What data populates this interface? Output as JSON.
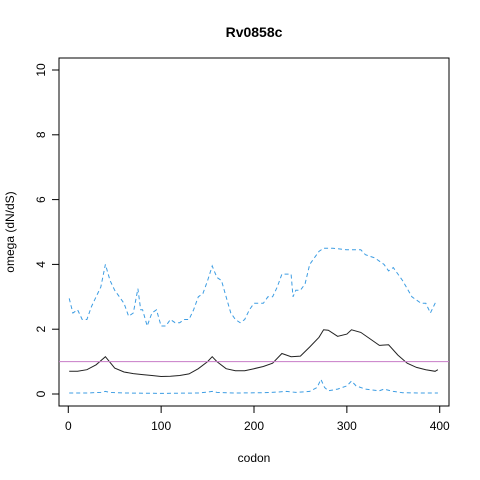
{
  "chart_data": {
    "type": "line",
    "title": "Rv0858c",
    "xlabel": "codon",
    "ylabel": "omega (dN/dS)",
    "xlim": [
      -10,
      410
    ],
    "ylim": [
      0,
      10
    ],
    "x_ticks": [
      0,
      100,
      200,
      300,
      400
    ],
    "y_ticks": [
      0,
      2,
      4,
      6,
      8,
      10
    ],
    "reference_line": {
      "y": 1,
      "color": "#c77cc7"
    },
    "series": [
      {
        "style": "solid",
        "color": "#222222",
        "points": [
          [
            1,
            0.7
          ],
          [
            10,
            0.7
          ],
          [
            20,
            0.75
          ],
          [
            30,
            0.9
          ],
          [
            40,
            1.15
          ],
          [
            50,
            0.8
          ],
          [
            60,
            0.68
          ],
          [
            70,
            0.63
          ],
          [
            80,
            0.6
          ],
          [
            90,
            0.57
          ],
          [
            100,
            0.54
          ],
          [
            110,
            0.55
          ],
          [
            120,
            0.57
          ],
          [
            130,
            0.62
          ],
          [
            140,
            0.78
          ],
          [
            150,
            1.0
          ],
          [
            155,
            1.15
          ],
          [
            160,
            1.0
          ],
          [
            170,
            0.78
          ],
          [
            180,
            0.72
          ],
          [
            190,
            0.72
          ],
          [
            200,
            0.78
          ],
          [
            210,
            0.85
          ],
          [
            220,
            0.95
          ],
          [
            230,
            1.25
          ],
          [
            240,
            1.15
          ],
          [
            250,
            1.17
          ],
          [
            260,
            1.45
          ],
          [
            270,
            1.75
          ],
          [
            275,
            1.98
          ],
          [
            280,
            1.97
          ],
          [
            290,
            1.78
          ],
          [
            300,
            1.85
          ],
          [
            305,
            1.98
          ],
          [
            315,
            1.9
          ],
          [
            325,
            1.7
          ],
          [
            335,
            1.5
          ],
          [
            345,
            1.52
          ],
          [
            355,
            1.2
          ],
          [
            365,
            0.95
          ],
          [
            375,
            0.82
          ],
          [
            385,
            0.75
          ],
          [
            395,
            0.7
          ],
          [
            398,
            0.75
          ]
        ]
      },
      {
        "style": "dashed",
        "color": "#3d9de3",
        "points": [
          [
            1,
            2.95
          ],
          [
            5,
            2.5
          ],
          [
            10,
            2.6
          ],
          [
            15,
            2.3
          ],
          [
            20,
            2.3
          ],
          [
            25,
            2.7
          ],
          [
            30,
            3.0
          ],
          [
            35,
            3.3
          ],
          [
            40,
            4.0
          ],
          [
            45,
            3.5
          ],
          [
            50,
            3.2
          ],
          [
            55,
            3.0
          ],
          [
            60,
            2.8
          ],
          [
            65,
            2.4
          ],
          [
            70,
            2.5
          ],
          [
            75,
            3.25
          ],
          [
            78,
            2.6
          ],
          [
            80,
            2.6
          ],
          [
            85,
            2.1
          ],
          [
            90,
            2.5
          ],
          [
            95,
            2.6
          ],
          [
            100,
            2.1
          ],
          [
            105,
            2.1
          ],
          [
            110,
            2.3
          ],
          [
            115,
            2.2
          ],
          [
            120,
            2.2
          ],
          [
            125,
            2.3
          ],
          [
            130,
            2.3
          ],
          [
            135,
            2.6
          ],
          [
            140,
            3.0
          ],
          [
            145,
            3.1
          ],
          [
            150,
            3.5
          ],
          [
            155,
            3.95
          ],
          [
            160,
            3.6
          ],
          [
            165,
            3.5
          ],
          [
            170,
            3.0
          ],
          [
            175,
            2.5
          ],
          [
            180,
            2.3
          ],
          [
            185,
            2.2
          ],
          [
            190,
            2.3
          ],
          [
            195,
            2.6
          ],
          [
            200,
            2.8
          ],
          [
            210,
            2.8
          ],
          [
            215,
            3.0
          ],
          [
            220,
            3.0
          ],
          [
            225,
            3.3
          ],
          [
            230,
            3.7
          ],
          [
            240,
            3.7
          ],
          [
            242,
            3.0
          ],
          [
            245,
            3.2
          ],
          [
            250,
            3.2
          ],
          [
            255,
            3.4
          ],
          [
            260,
            4.0
          ],
          [
            270,
            4.4
          ],
          [
            275,
            4.5
          ],
          [
            285,
            4.5
          ],
          [
            300,
            4.45
          ],
          [
            315,
            4.45
          ],
          [
            320,
            4.3
          ],
          [
            330,
            4.2
          ],
          [
            340,
            4.0
          ],
          [
            345,
            3.8
          ],
          [
            350,
            3.9
          ],
          [
            360,
            3.5
          ],
          [
            370,
            3.0
          ],
          [
            380,
            2.8
          ],
          [
            385,
            2.8
          ],
          [
            390,
            2.5
          ],
          [
            395,
            2.8
          ],
          [
            398,
            2.75
          ]
        ]
      },
      {
        "style": "dashed",
        "color": "#3d9de3",
        "points": [
          [
            1,
            0.03
          ],
          [
            20,
            0.03
          ],
          [
            35,
            0.05
          ],
          [
            40,
            0.08
          ],
          [
            45,
            0.05
          ],
          [
            60,
            0.03
          ],
          [
            100,
            0.02
          ],
          [
            140,
            0.03
          ],
          [
            150,
            0.06
          ],
          [
            155,
            0.08
          ],
          [
            160,
            0.05
          ],
          [
            180,
            0.03
          ],
          [
            210,
            0.04
          ],
          [
            225,
            0.06
          ],
          [
            235,
            0.08
          ],
          [
            245,
            0.05
          ],
          [
            260,
            0.08
          ],
          [
            268,
            0.2
          ],
          [
            272,
            0.45
          ],
          [
            276,
            0.2
          ],
          [
            280,
            0.1
          ],
          [
            290,
            0.15
          ],
          [
            300,
            0.25
          ],
          [
            305,
            0.4
          ],
          [
            310,
            0.25
          ],
          [
            320,
            0.15
          ],
          [
            335,
            0.1
          ],
          [
            340,
            0.15
          ],
          [
            350,
            0.08
          ],
          [
            360,
            0.04
          ],
          [
            380,
            0.03
          ],
          [
            398,
            0.03
          ]
        ]
      }
    ]
  }
}
